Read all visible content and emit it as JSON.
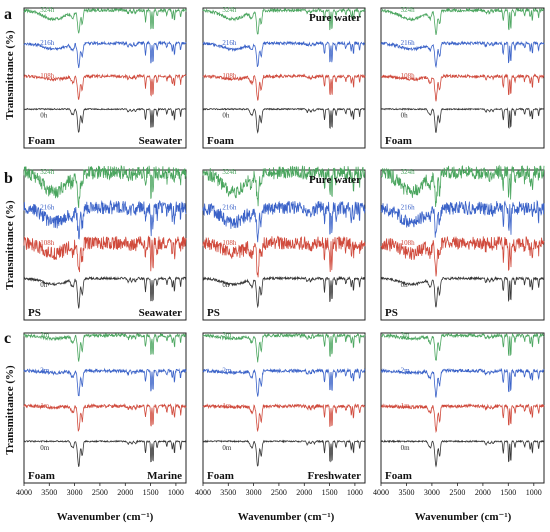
{
  "figure": {
    "rows": [
      {
        "letter": "a",
        "ylabel": "Transmittance (%)"
      },
      {
        "letter": "b",
        "ylabel": "Transmittance (%)"
      },
      {
        "letter": "c",
        "ylabel": "Transmittance (%)"
      }
    ],
    "xlabel": "Wavenumber (cm⁻¹)"
  },
  "chart_data": [
    {
      "type": "line",
      "row": "a",
      "col": 1,
      "xlim": [
        4000,
        800
      ],
      "x_ticks": [
        4000,
        3500,
        3000,
        2500,
        2000,
        1500,
        1000
      ],
      "labels": {
        "bottom_left": "Foam",
        "bottom_right": "Seawater"
      },
      "series": [
        {
          "name": "0h",
          "color": "#333333"
        },
        {
          "name": "108h",
          "color": "#d04a3c"
        },
        {
          "name": "216h",
          "color": "#3a62c8"
        },
        {
          "name": "324h",
          "color": "#4aa55e"
        }
      ]
    },
    {
      "type": "line",
      "row": "a",
      "col": 2,
      "xlim": [
        4000,
        800
      ],
      "x_ticks": [
        4000,
        3500,
        3000,
        2500,
        2000,
        1500,
        1000
      ],
      "labels": {
        "top_right": "Pure water",
        "bottom_left": "Foam"
      },
      "series": [
        {
          "name": "0h",
          "color": "#333333"
        },
        {
          "name": "108h",
          "color": "#d04a3c"
        },
        {
          "name": "216h",
          "color": "#3a62c8"
        },
        {
          "name": "324h",
          "color": "#4aa55e"
        }
      ]
    },
    {
      "type": "line",
      "row": "a",
      "col": 3,
      "xlim": [
        4000,
        800
      ],
      "x_ticks": [
        4000,
        3500,
        3000,
        2500,
        2000,
        1500,
        1000
      ],
      "labels": {
        "bottom_left": "Foam"
      },
      "series": [
        {
          "name": "0h",
          "color": "#333333"
        },
        {
          "name": "108h",
          "color": "#d04a3c"
        },
        {
          "name": "216h",
          "color": "#3a62c8"
        },
        {
          "name": "324h",
          "color": "#4aa55e"
        }
      ]
    },
    {
      "type": "line",
      "row": "b",
      "col": 1,
      "xlim": [
        4000,
        800
      ],
      "x_ticks": [
        4000,
        3500,
        3000,
        2500,
        2000,
        1500,
        1000
      ],
      "labels": {
        "bottom_left": "PS",
        "bottom_right": "Seawater"
      },
      "series": [
        {
          "name": "0h",
          "color": "#333333"
        },
        {
          "name": "108h",
          "color": "#d04a3c"
        },
        {
          "name": "216h",
          "color": "#3a62c8"
        },
        {
          "name": "324h",
          "color": "#4aa55e"
        }
      ]
    },
    {
      "type": "line",
      "row": "b",
      "col": 2,
      "xlim": [
        4000,
        800
      ],
      "x_ticks": [
        4000,
        3500,
        3000,
        2500,
        2000,
        1500,
        1000
      ],
      "labels": {
        "top_right": "Pure water",
        "bottom_left": "PS"
      },
      "series": [
        {
          "name": "0h",
          "color": "#333333"
        },
        {
          "name": "108h",
          "color": "#d04a3c"
        },
        {
          "name": "216h",
          "color": "#3a62c8"
        },
        {
          "name": "324h",
          "color": "#4aa55e"
        }
      ]
    },
    {
      "type": "line",
      "row": "b",
      "col": 3,
      "xlim": [
        4000,
        800
      ],
      "x_ticks": [
        4000,
        3500,
        3000,
        2500,
        2000,
        1500,
        1000
      ],
      "labels": {
        "bottom_left": "PS"
      },
      "series": [
        {
          "name": "0h",
          "color": "#333333"
        },
        {
          "name": "108h",
          "color": "#d04a3c"
        },
        {
          "name": "216h",
          "color": "#3a62c8"
        },
        {
          "name": "324h",
          "color": "#4aa55e"
        }
      ]
    },
    {
      "type": "line",
      "row": "c",
      "col": 1,
      "xlim": [
        4000,
        800
      ],
      "x_ticks": [
        4000,
        3500,
        3000,
        2500,
        2000,
        1500,
        1000
      ],
      "labels": {
        "bottom_left": "Foam",
        "bottom_right": "Marine"
      },
      "series": [
        {
          "name": "0m",
          "color": "#333333"
        },
        {
          "name": "1m",
          "color": "#d04a3c"
        },
        {
          "name": "2m",
          "color": "#3a62c8"
        },
        {
          "name": "3m",
          "color": "#4aa55e"
        }
      ]
    },
    {
      "type": "line",
      "row": "c",
      "col": 2,
      "xlim": [
        4000,
        800
      ],
      "x_ticks": [
        4000,
        3500,
        3000,
        2500,
        2000,
        1500,
        1000
      ],
      "labels": {
        "bottom_left": "Foam",
        "bottom_right": "Freshwater"
      },
      "series": [
        {
          "name": "0m",
          "color": "#333333"
        },
        {
          "name": "1m",
          "color": "#d04a3c"
        },
        {
          "name": "2m",
          "color": "#3a62c8"
        },
        {
          "name": "3m",
          "color": "#4aa55e"
        }
      ]
    },
    {
      "type": "line",
      "row": "c",
      "col": 3,
      "xlim": [
        4000,
        800
      ],
      "x_ticks": [
        4000,
        3500,
        3000,
        2500,
        2000,
        1500,
        1000
      ],
      "labels": {
        "bottom_left": "Foam"
      },
      "series": [
        {
          "name": "0m",
          "color": "#333333"
        },
        {
          "name": "1m",
          "color": "#d04a3c"
        },
        {
          "name": "2m",
          "color": "#3a62c8"
        },
        {
          "name": "3m",
          "color": "#4aa55e"
        }
      ]
    }
  ]
}
